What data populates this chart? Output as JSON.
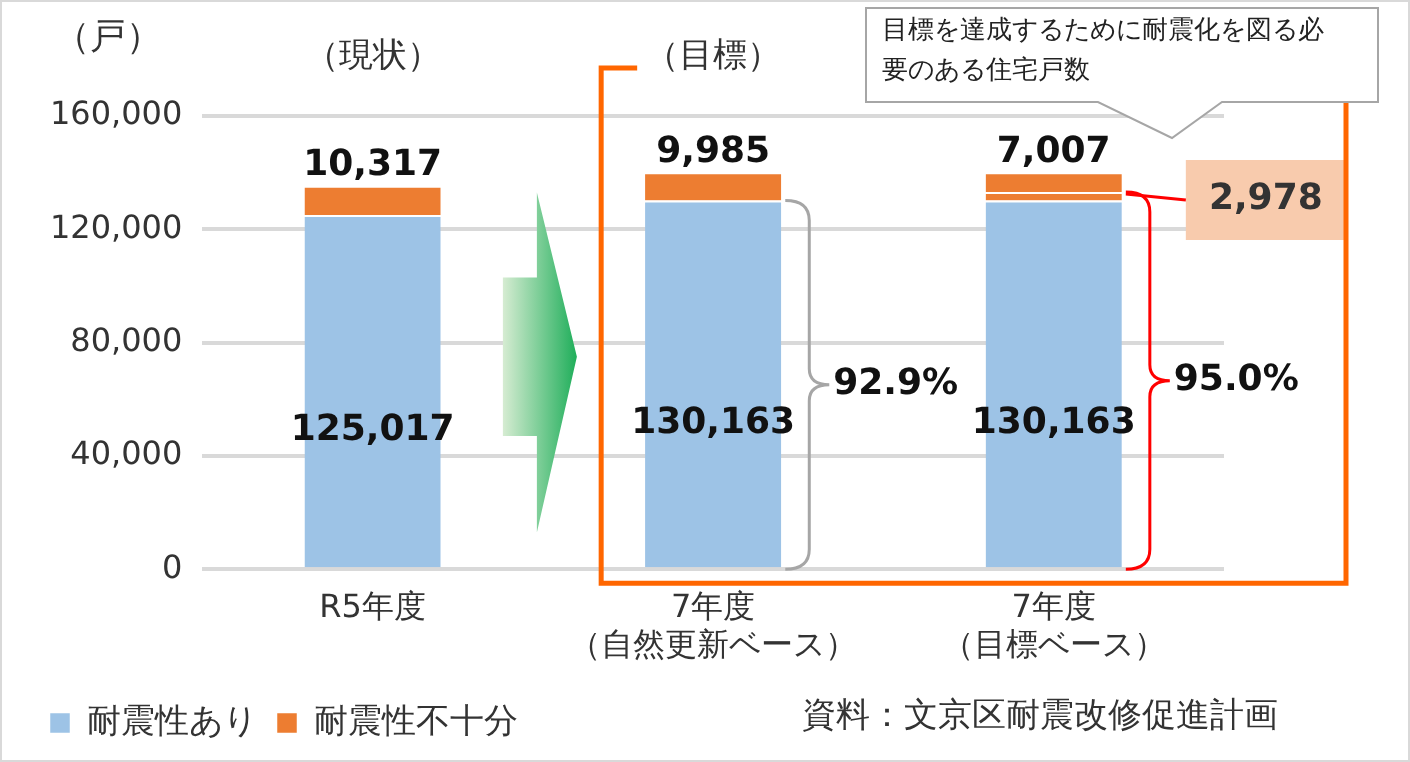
{
  "chart_data": {
    "type": "bar",
    "stacked": true,
    "ylabel": "（戸）",
    "categories": [
      "R5年度",
      "7年度（自然更新ベース）",
      "7年度（目標ベース）"
    ],
    "series": [
      {
        "name": "耐震性あり",
        "color": "#9dc3e6",
        "values": [
          125017,
          130163,
          130163
        ],
        "value_labels": [
          "125,017",
          "130,163",
          "130,163"
        ]
      },
      {
        "color": "#ed7d31",
        "values": [
          null,
          null,
          2978
        ],
        "value_labels": [
          null,
          null,
          "2,978"
        ]
      },
      {
        "name": "耐震性不十分",
        "color": "#ed7d31",
        "values": [
          10317,
          9985,
          7007
        ],
        "value_labels": [
          "10,317",
          "9,985",
          "7,007"
        ]
      }
    ],
    "ylim": [
      0,
      160000
    ],
    "yticks": [
      {
        "value": 0,
        "label": "0"
      },
      {
        "value": 40000,
        "label": "40,000"
      },
      {
        "value": 80000,
        "label": "80,000"
      },
      {
        "value": 120000,
        "label": "120,000"
      },
      {
        "value": 160000,
        "label": "160,000"
      }
    ],
    "grid": "y",
    "legend": "bottom left",
    "annotations": [
      "（現状）",
      "（目標）",
      "目標を達成するために耐震化を図る必要のある住宅戸数",
      "92.9%",
      "95.0%",
      "資料：文京区耐震改修促進計画"
    ]
  }
}
